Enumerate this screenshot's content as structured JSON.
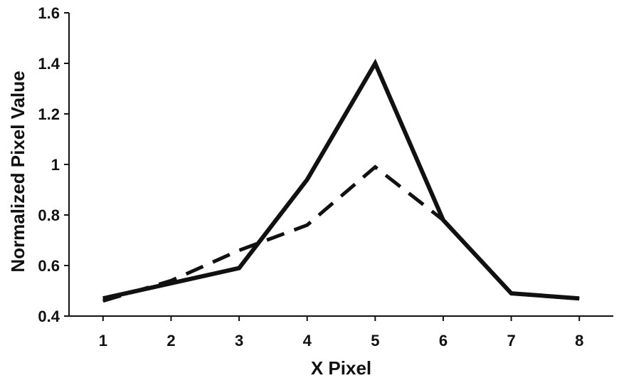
{
  "chart_data": {
    "type": "line",
    "title": "",
    "xlabel": "X Pixel",
    "ylabel": "Normalized Pixel Value",
    "x": [
      1,
      2,
      3,
      4,
      5,
      6,
      7,
      8
    ],
    "xlim": [
      0.5,
      8.5
    ],
    "ylim": [
      0.4,
      1.6
    ],
    "x_ticks": [
      "1",
      "2",
      "3",
      "4",
      "5",
      "6",
      "7",
      "8"
    ],
    "y_ticks": [
      "0.4",
      "0.6",
      "0.8",
      "1",
      "1.2",
      "1.4",
      "1.6"
    ],
    "grid": false,
    "legend": "none",
    "series": [
      {
        "style": "solid",
        "color": "#111111",
        "x": [
          1,
          2,
          3,
          4,
          5,
          6,
          7,
          8
        ],
        "values": [
          0.47,
          0.53,
          0.59,
          0.94,
          1.4,
          0.78,
          0.49,
          0.47
        ]
      },
      {
        "style": "dashed",
        "color": "#111111",
        "x": [
          1,
          2,
          3,
          4,
          5,
          6
        ],
        "values": [
          0.46,
          0.54,
          0.66,
          0.76,
          0.99,
          0.78
        ]
      }
    ]
  }
}
